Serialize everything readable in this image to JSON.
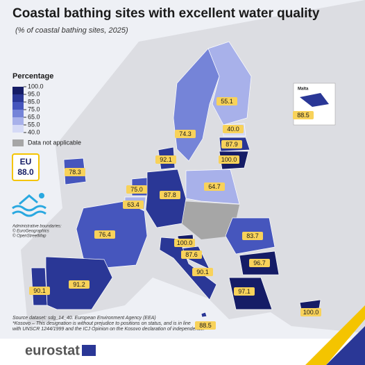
{
  "title": "Coastal bathing sites with excellent water quality",
  "subtitle": "(% of coastal bathing sites, 2025)",
  "legend": {
    "title": "Percentage",
    "ticks": [
      {
        "value": 100,
        "label": "100.0"
      },
      {
        "value": 95,
        "label": "95.0"
      },
      {
        "value": 85,
        "label": "85.0"
      },
      {
        "value": 75,
        "label": "75.0"
      },
      {
        "value": 65,
        "label": "65.0"
      },
      {
        "value": 55,
        "label": "55.0"
      },
      {
        "value": 40,
        "label": "40.0"
      }
    ],
    "colors": [
      "#151c66",
      "#2a3796",
      "#4656bd",
      "#7584d8",
      "#a8b1ea",
      "#d5daf6"
    ],
    "not_applicable": "Data not applicable"
  },
  "eu": {
    "name": "EU",
    "value": {
      "value": 88,
      "label": "88.0"
    }
  },
  "regions": [
    55.1,
    74.3,
    {
      "value": 40,
      "label": "40.0"
    },
    87.9,
    {
      "value": 100,
      "label": "100.0"
    },
    92.1,
    78.3,
    {
      "value": 75,
      "label": "75.0"
    },
    63.4,
    87.8,
    64.7,
    76.4,
    {
      "value": 100,
      "label": "100.0"
    },
    87.6,
    83.7,
    96.7,
    90.1,
    97.1,
    90.1,
    91.2,
    {
      "value": 100,
      "label": "100.0"
    },
    88.5
  ],
  "inset": {
    "title": "Malta"
  },
  "notes": [
    "Administrative boundaries:",
    "© EuroGeographics",
    "© OpenStreetMap"
  ],
  "source": [
    "Source dataset: sdg_14_40. European Environment Agency (EEA)",
    "*Kosovo – This designation is without prejudice to positions on status, and is in line",
    "with UNSCR 1244/1999 and the ICJ Opinion on the Kosovo declaration of independence."
  ],
  "brand": "eurostat"
}
